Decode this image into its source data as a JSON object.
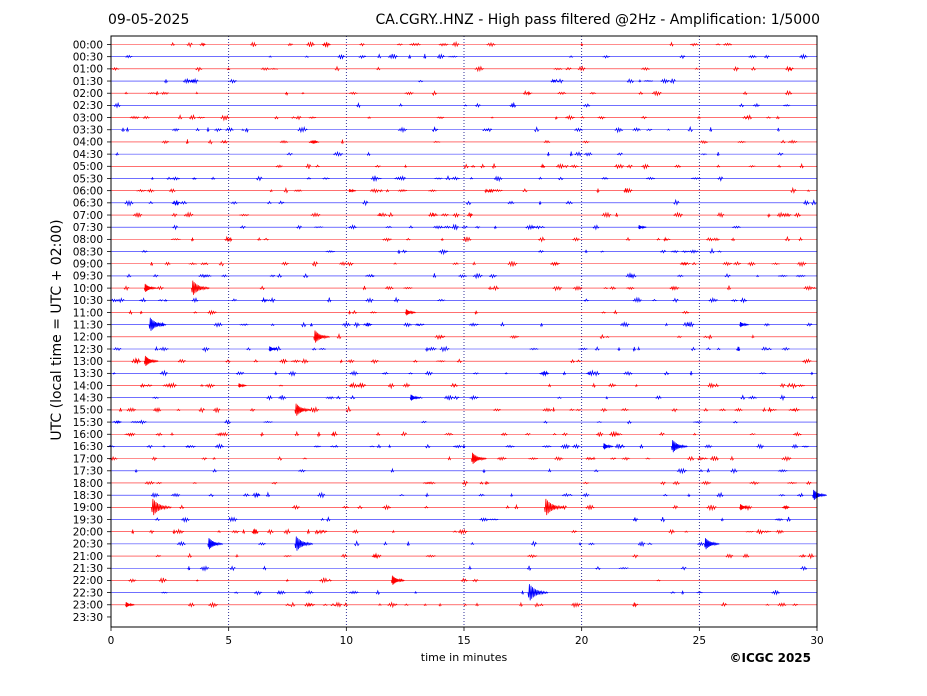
{
  "header": {
    "date": "09-05-2025",
    "title": "CA.CGRY..HNZ - High pass filtered @2Hz - Amplification: 1/5000"
  },
  "footer": {
    "credit": "©ICGC 2025"
  },
  "chart_data": {
    "type": "line",
    "subtype": "helicorder",
    "xlabel": "time in minutes",
    "ylabel": "UTC (local time = UTC + 02:00)",
    "xlim": [
      0,
      30
    ],
    "x_ticks": [
      "0",
      "5",
      "10",
      "15",
      "20",
      "25",
      "30"
    ],
    "x_tick_values": [
      0,
      5,
      10,
      15,
      20,
      25,
      30
    ],
    "vertical_gridlines": [
      5,
      10,
      15,
      20,
      25
    ],
    "grid": "vertical dotted",
    "row_labels": [
      "00:00",
      "00:30",
      "01:00",
      "01:30",
      "02:00",
      "02:30",
      "03:00",
      "03:30",
      "04:00",
      "04:30",
      "05:00",
      "05:30",
      "06:00",
      "06:30",
      "07:00",
      "07:30",
      "08:00",
      "08:30",
      "09:00",
      "09:30",
      "10:00",
      "10:30",
      "11:00",
      "11:30",
      "12:00",
      "12:30",
      "13:00",
      "13:30",
      "14:00",
      "14:30",
      "15:00",
      "15:30",
      "16:00",
      "16:30",
      "17:00",
      "17:30",
      "18:00",
      "18:30",
      "19:00",
      "19:30",
      "20:00",
      "20:30",
      "21:00",
      "21:30",
      "22:00",
      "22:30",
      "23:00",
      "23:30"
    ],
    "trace_colors": [
      "#ff0000",
      "#0000ff"
    ],
    "recorded_rows": 47,
    "events": [
      {
        "row": "06:00",
        "minute": 10.2,
        "amp": 0.3
      },
      {
        "row": "07:30",
        "minute": 22.5,
        "amp": 0.4
      },
      {
        "row": "10:00",
        "minute": 1.5,
        "amp": 0.8
      },
      {
        "row": "10:00",
        "minute": 3.5,
        "amp": 1.4
      },
      {
        "row": "11:00",
        "minute": 12.6,
        "amp": 0.6
      },
      {
        "row": "11:30",
        "minute": 1.7,
        "amp": 1.3
      },
      {
        "row": "11:30",
        "minute": 26.8,
        "amp": 0.5
      },
      {
        "row": "12:00",
        "minute": 8.7,
        "amp": 1.2
      },
      {
        "row": "12:30",
        "minute": 6.8,
        "amp": 0.5
      },
      {
        "row": "13:00",
        "minute": 1.5,
        "amp": 1.0
      },
      {
        "row": "14:00",
        "minute": 5.5,
        "amp": 0.4
      },
      {
        "row": "14:30",
        "minute": 12.8,
        "amp": 0.6
      },
      {
        "row": "15:00",
        "minute": 7.9,
        "amp": 1.2
      },
      {
        "row": "16:30",
        "minute": 21.0,
        "amp": 0.6
      },
      {
        "row": "16:30",
        "minute": 23.9,
        "amp": 1.2
      },
      {
        "row": "17:00",
        "minute": 15.4,
        "amp": 1.1
      },
      {
        "row": "18:30",
        "minute": 29.9,
        "amp": 1.0
      },
      {
        "row": "19:00",
        "minute": 1.8,
        "amp": 1.6
      },
      {
        "row": "19:00",
        "minute": 18.5,
        "amp": 1.6
      },
      {
        "row": "19:00",
        "minute": 26.8,
        "amp": 0.6
      },
      {
        "row": "20:30",
        "minute": 4.2,
        "amp": 1.1
      },
      {
        "row": "20:30",
        "minute": 7.9,
        "amp": 1.4
      },
      {
        "row": "20:30",
        "minute": 25.3,
        "amp": 1.1
      },
      {
        "row": "22:00",
        "minute": 12.0,
        "amp": 0.9
      },
      {
        "row": "22:30",
        "minute": 17.8,
        "amp": 1.6
      },
      {
        "row": "23:00",
        "minute": 0.7,
        "amp": 0.5
      }
    ]
  }
}
